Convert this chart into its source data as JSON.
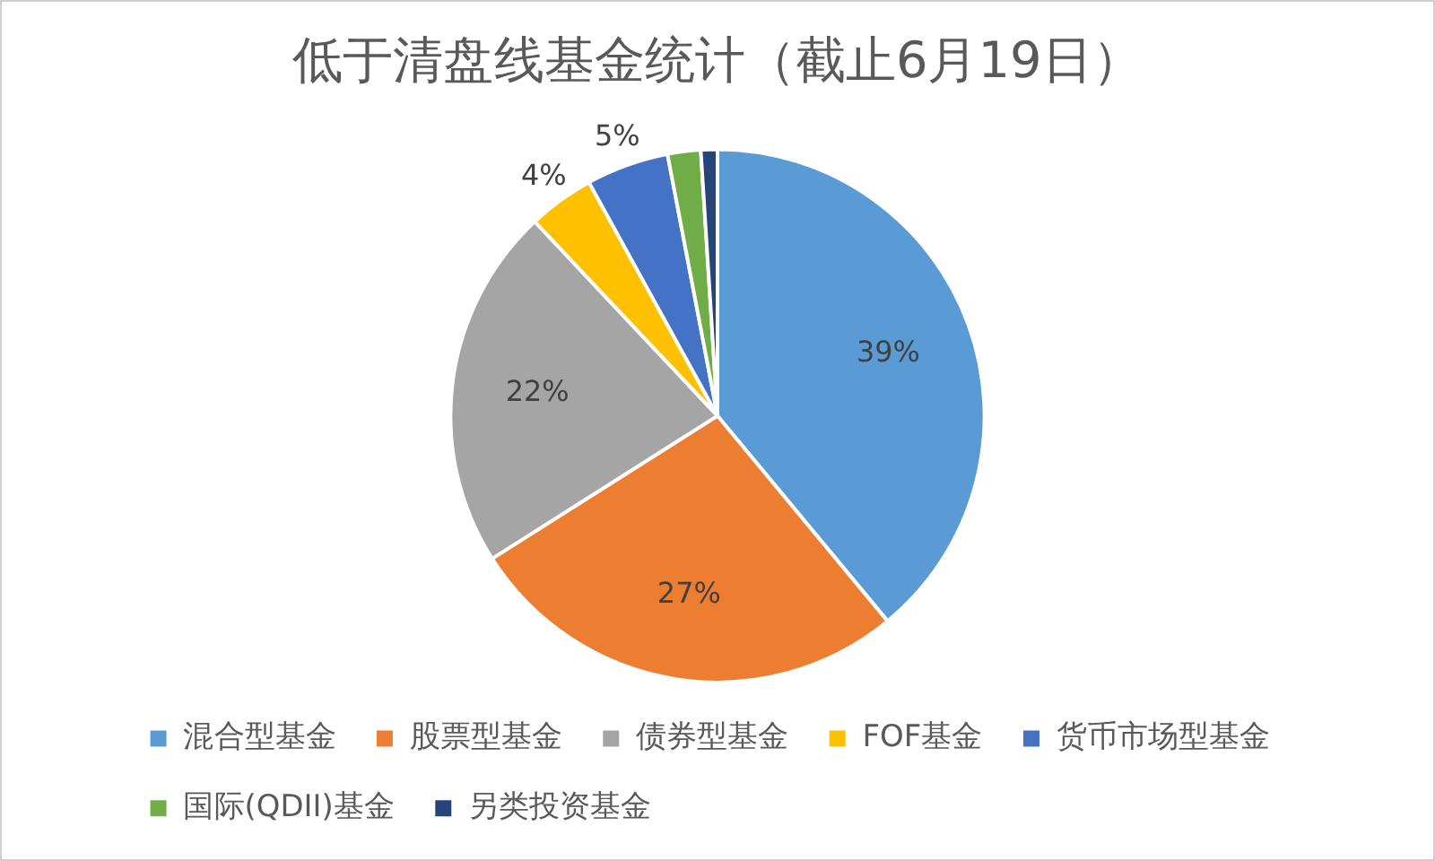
{
  "chart_data": {
    "type": "pie",
    "title": "低于清盘线基金统计（截止6月19日）",
    "categories": [
      "混合型基金",
      "股票型基金",
      "债券型基金",
      "FOF基金",
      "货币市场型基金",
      "国际(QDII)基金",
      "另类投资基金"
    ],
    "values": [
      39,
      27,
      22,
      4,
      5,
      2,
      1
    ],
    "value_labels": [
      "39%",
      "27%",
      "22%",
      "4%",
      "5%",
      null,
      null
    ],
    "colors": [
      "#5b9bd5",
      "#ed7d31",
      "#a5a5a5",
      "#ffc000",
      "#4472c4",
      "#70ad47",
      "#264478"
    ],
    "legend": "bottom"
  }
}
